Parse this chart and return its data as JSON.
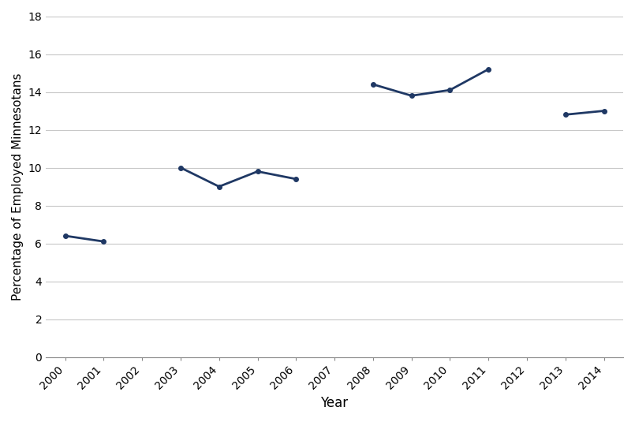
{
  "all_years": [
    2000,
    2001,
    2002,
    2003,
    2004,
    2005,
    2006,
    2007,
    2008,
    2009,
    2010,
    2011,
    2012,
    2013,
    2014
  ],
  "data_points": {
    "2000": 6.4,
    "2001": 6.1,
    "2003": 10.0,
    "2004": 9.0,
    "2005": 9.8,
    "2006": 9.4,
    "2008": 14.4,
    "2009": 13.8,
    "2010": 14.1,
    "2011": 15.2,
    "2013": 12.8,
    "2014": 13.0
  },
  "segments": [
    [
      "2000",
      "2001"
    ],
    [
      "2003",
      "2004",
      "2005",
      "2006"
    ],
    [
      "2008",
      "2009",
      "2010",
      "2011"
    ],
    [
      "2013",
      "2014"
    ]
  ],
  "line_color": "#1F3864",
  "line_width": 2.0,
  "marker": "o",
  "marker_size": 4,
  "xlabel": "Year",
  "ylabel": "Percentage of Employed Minnesotans",
  "ylim": [
    0,
    18
  ],
  "yticks": [
    0,
    2,
    4,
    6,
    8,
    10,
    12,
    14,
    16,
    18
  ],
  "background_color": "#ffffff",
  "grid_color": "#c8c8c8",
  "xlabel_fontsize": 12,
  "ylabel_fontsize": 11,
  "tick_fontsize": 10
}
